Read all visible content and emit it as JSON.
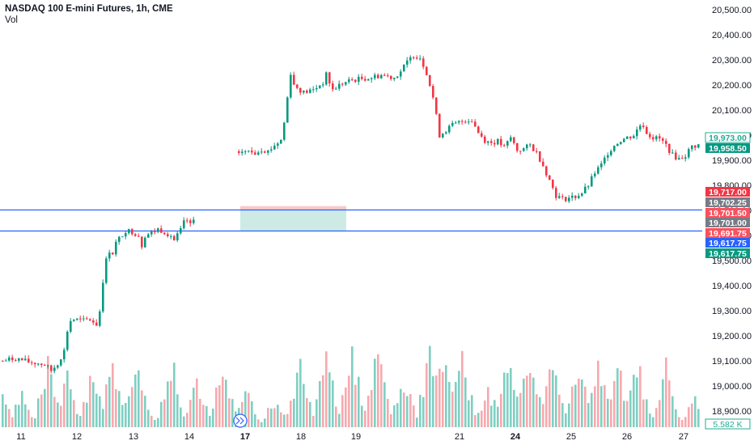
{
  "header": {
    "title": "NASDAQ 100 E-mini Futures, 1h, CME",
    "vol_label": "Vol"
  },
  "chart_data": {
    "type": "candlestick",
    "y_ticks": [
      "20,500.00",
      "20,400.00",
      "20,300.00",
      "20,200.00",
      "20,100.00",
      "20,000.00",
      "19,900.00",
      "19,800.00",
      "19,700.00",
      "19,600.00",
      "19,500.00",
      "19,400.00",
      "19,300.00",
      "19,200.00",
      "19,100.00",
      "19,000.00",
      "18,900.00"
    ],
    "x_ticks": [
      {
        "label": "11",
        "bold": false
      },
      {
        "label": "12",
        "bold": false
      },
      {
        "label": "13",
        "bold": false
      },
      {
        "label": "14",
        "bold": false
      },
      {
        "label": "17",
        "bold": true
      },
      {
        "label": "18",
        "bold": false
      },
      {
        "label": "19",
        "bold": false
      },
      {
        "label": "21",
        "bold": false
      },
      {
        "label": "24",
        "bold": true
      },
      {
        "label": "25",
        "bold": false
      },
      {
        "label": "26",
        "bold": false
      },
      {
        "label": "27",
        "bold": false
      }
    ],
    "ylim": [
      18850,
      20530
    ],
    "price_path": [
      [
        0,
        19100
      ],
      [
        4,
        19110
      ],
      [
        8,
        19095
      ],
      [
        11,
        19090
      ],
      [
        13,
        19085
      ],
      [
        15,
        19060
      ],
      [
        17,
        19090
      ],
      [
        19,
        19140
      ],
      [
        20,
        19220
      ],
      [
        21,
        19260
      ],
      [
        22,
        19265
      ],
      [
        25,
        19260
      ],
      [
        27,
        19265
      ],
      [
        29,
        19245
      ],
      [
        30,
        19300
      ],
      [
        31,
        19420
      ],
      [
        32,
        19500
      ],
      [
        33,
        19540
      ],
      [
        34,
        19530
      ],
      [
        35,
        19570
      ],
      [
        38,
        19620
      ],
      [
        40,
        19615
      ],
      [
        42,
        19600
      ],
      [
        43,
        19560
      ],
      [
        44,
        19600
      ],
      [
        46,
        19610
      ],
      [
        48,
        19625
      ],
      [
        50,
        19615
      ],
      [
        52,
        19600
      ],
      [
        53,
        19580
      ],
      [
        55,
        19620
      ],
      [
        56,
        19650
      ],
      [
        57,
        19660
      ],
      [
        58,
        19640
      ],
      [
        59,
        19660
      ],
      [
        72,
        19940
      ],
      [
        75,
        19935
      ],
      [
        78,
        19930
      ],
      [
        80,
        19945
      ],
      [
        82,
        19935
      ],
      [
        84,
        19960
      ],
      [
        86,
        19980
      ],
      [
        87,
        20050
      ],
      [
        88,
        20150
      ],
      [
        89,
        20250
      ],
      [
        90,
        20200
      ],
      [
        93,
        20170
      ],
      [
        96,
        20180
      ],
      [
        99,
        20210
      ],
      [
        100,
        20240
      ],
      [
        102,
        20180
      ],
      [
        104,
        20200
      ],
      [
        106,
        20210
      ],
      [
        108,
        20220
      ],
      [
        111,
        20225
      ],
      [
        114,
        20230
      ],
      [
        117,
        20240
      ],
      [
        119,
        20235
      ],
      [
        121,
        20230
      ],
      [
        123,
        20255
      ],
      [
        125,
        20290
      ],
      [
        127,
        20320
      ],
      [
        129,
        20310
      ],
      [
        131,
        20250
      ],
      [
        133,
        20150
      ],
      [
        135,
        20000
      ],
      [
        137,
        20020
      ],
      [
        139,
        20040
      ],
      [
        141,
        20050
      ],
      [
        143,
        20060
      ],
      [
        145,
        20060
      ],
      [
        147,
        20010
      ],
      [
        149,
        19980
      ],
      [
        151,
        19970
      ],
      [
        153,
        19975
      ],
      [
        155,
        19950
      ],
      [
        157,
        19990
      ],
      [
        159,
        19940
      ],
      [
        161,
        19945
      ],
      [
        163,
        19960
      ],
      [
        165,
        19930
      ],
      [
        167,
        19880
      ],
      [
        169,
        19820
      ],
      [
        171,
        19760
      ],
      [
        173,
        19745
      ],
      [
        175,
        19750
      ],
      [
        177,
        19755
      ],
      [
        179,
        19770
      ],
      [
        181,
        19800
      ],
      [
        183,
        19850
      ],
      [
        185,
        19880
      ],
      [
        187,
        19930
      ],
      [
        189,
        19960
      ],
      [
        191,
        19980
      ],
      [
        193,
        19990
      ],
      [
        195,
        20000
      ],
      [
        197,
        20040
      ],
      [
        198,
        20040
      ],
      [
        199,
        20010
      ],
      [
        201,
        19990
      ],
      [
        203,
        19985
      ],
      [
        205,
        19960
      ],
      [
        207,
        19920
      ],
      [
        209,
        19905
      ],
      [
        211,
        19920
      ],
      [
        213,
        19955
      ],
      [
        215,
        19960
      ]
    ],
    "zone": {
      "high": 19701.5,
      "low": 19617.75,
      "stop": 19717.0,
      "line_high": 19701.5,
      "line_low": 19617.75
    },
    "price_labels": [
      {
        "text": "19,973.00",
        "style": "outline",
        "color": "#22ab94"
      },
      {
        "text": "19,958.50",
        "style": "fill",
        "color": "#089981"
      },
      {
        "text": "19,717.00",
        "style": "fill",
        "color": "#f23645"
      },
      {
        "text": "19,702.25",
        "style": "fill",
        "color": "#787b86"
      },
      {
        "text": "19,701.50",
        "style": "fill",
        "color": "#f7525f"
      },
      {
        "text": "19,701.00",
        "style": "fill",
        "color": "#787b86"
      },
      {
        "text": "19,691.75",
        "style": "fill",
        "color": "#f7525f"
      },
      {
        "text": "19,617.75",
        "style": "fill",
        "color": "#2962ff"
      },
      {
        "text": "19,617.75",
        "style": "fill",
        "color": "#089981"
      }
    ],
    "volume_label": "5.582 K",
    "volume_peaks": [
      [
        0,
        0.35
      ],
      [
        6,
        0.4
      ],
      [
        14,
        0.8
      ],
      [
        20,
        0.6
      ],
      [
        28,
        0.7
      ],
      [
        34,
        0.75
      ],
      [
        41,
        0.9
      ],
      [
        45,
        0.2
      ],
      [
        52,
        0.85
      ],
      [
        60,
        0.6
      ],
      [
        68,
        0.85
      ],
      [
        75,
        0.6
      ],
      [
        84,
        0.35
      ],
      [
        92,
        0.75
      ],
      [
        100,
        0.9
      ],
      [
        108,
        0.95
      ],
      [
        116,
        0.9
      ],
      [
        124,
        0.6
      ],
      [
        132,
        0.9
      ],
      [
        136,
        1.0
      ],
      [
        142,
        0.85
      ],
      [
        150,
        0.5
      ],
      [
        156,
        0.9
      ],
      [
        163,
        1.0
      ],
      [
        170,
        0.9
      ],
      [
        178,
        0.8
      ],
      [
        184,
        0.75
      ],
      [
        190,
        0.8
      ],
      [
        196,
        0.8
      ],
      [
        205,
        0.75
      ],
      [
        214,
        0.4
      ]
    ],
    "colors": {
      "up": "#089981",
      "down": "#f23645",
      "vol_up": "#7fcfc2",
      "vol_down": "#f7a9ae",
      "hline": "#2962ff",
      "grid": "#f0f3fa"
    }
  }
}
